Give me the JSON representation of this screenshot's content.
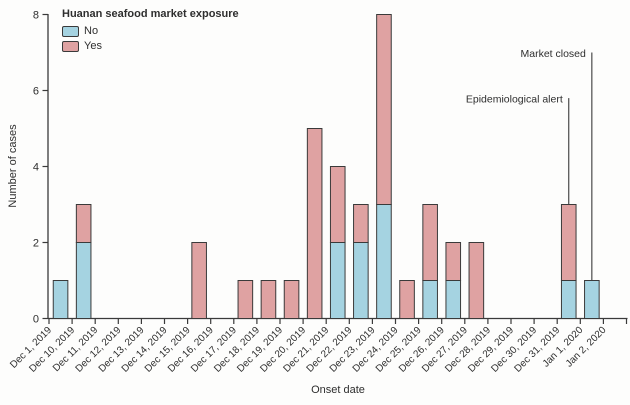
{
  "figure": {
    "background": "#fdfdfc",
    "axis_color": "#3a3a3a",
    "text_color": "#2e2e2e"
  },
  "legend": {
    "title": "Huanan seafood market exposure",
    "items": [
      {
        "label": "No",
        "color": "#a5d3e1"
      },
      {
        "label": "Yes",
        "color": "#dfa2a2"
      }
    ]
  },
  "chart_data": {
    "type": "bar",
    "stacked": true,
    "title": "",
    "xlabel": "Onset date",
    "ylabel": "Number of cases",
    "ylim": [
      0,
      8
    ],
    "yticks": [
      0,
      2,
      4,
      6,
      8
    ],
    "grid": false,
    "legend_position": "top-left",
    "categories": [
      "Dec 1, 2019",
      "Dec 10, 2019",
      "Dec 11, 2019",
      "Dec 12, 2019",
      "Dec 13, 2019",
      "Dec 14, 2019",
      "Dec 15, 2019",
      "Dec 16, 2019",
      "Dec 17, 2019",
      "Dec 18, 2019",
      "Dec 19, 2019",
      "Dec 20, 2019",
      "Dec 21, 2019",
      "Dec 22, 2019",
      "Dec 23, 2019",
      "Dec 24, 2019",
      "Dec 25, 2019",
      "Dec 26, 2019",
      "Dec 27, 2019",
      "Dec 28, 2019",
      "Dec 29, 2019",
      "Dec 30, 2019",
      "Dec 31, 2019",
      "Jan 1, 2020",
      "Jan 2, 2020"
    ],
    "series": [
      {
        "name": "No",
        "color": "#a5d3e1",
        "values": [
          1,
          2,
          0,
          0,
          0,
          0,
          0,
          0,
          0,
          0,
          0,
          0,
          2,
          2,
          3,
          0,
          1,
          1,
          0,
          0,
          0,
          0,
          1,
          1,
          0
        ]
      },
      {
        "name": "Yes",
        "color": "#dfa2a2",
        "values": [
          0,
          1,
          0,
          0,
          0,
          0,
          2,
          0,
          1,
          1,
          1,
          5,
          2,
          1,
          5,
          1,
          2,
          1,
          2,
          0,
          0,
          0,
          2,
          0,
          0
        ]
      }
    ],
    "annotations": [
      {
        "label": "Epidemiological alert",
        "category": "Dec 31, 2019",
        "line_top_cases": 5.8,
        "points_to_cases": 3
      },
      {
        "label": "Market closed",
        "category": "Jan 1, 2020",
        "line_top_cases": 7.0,
        "points_to_cases": 1
      }
    ]
  }
}
